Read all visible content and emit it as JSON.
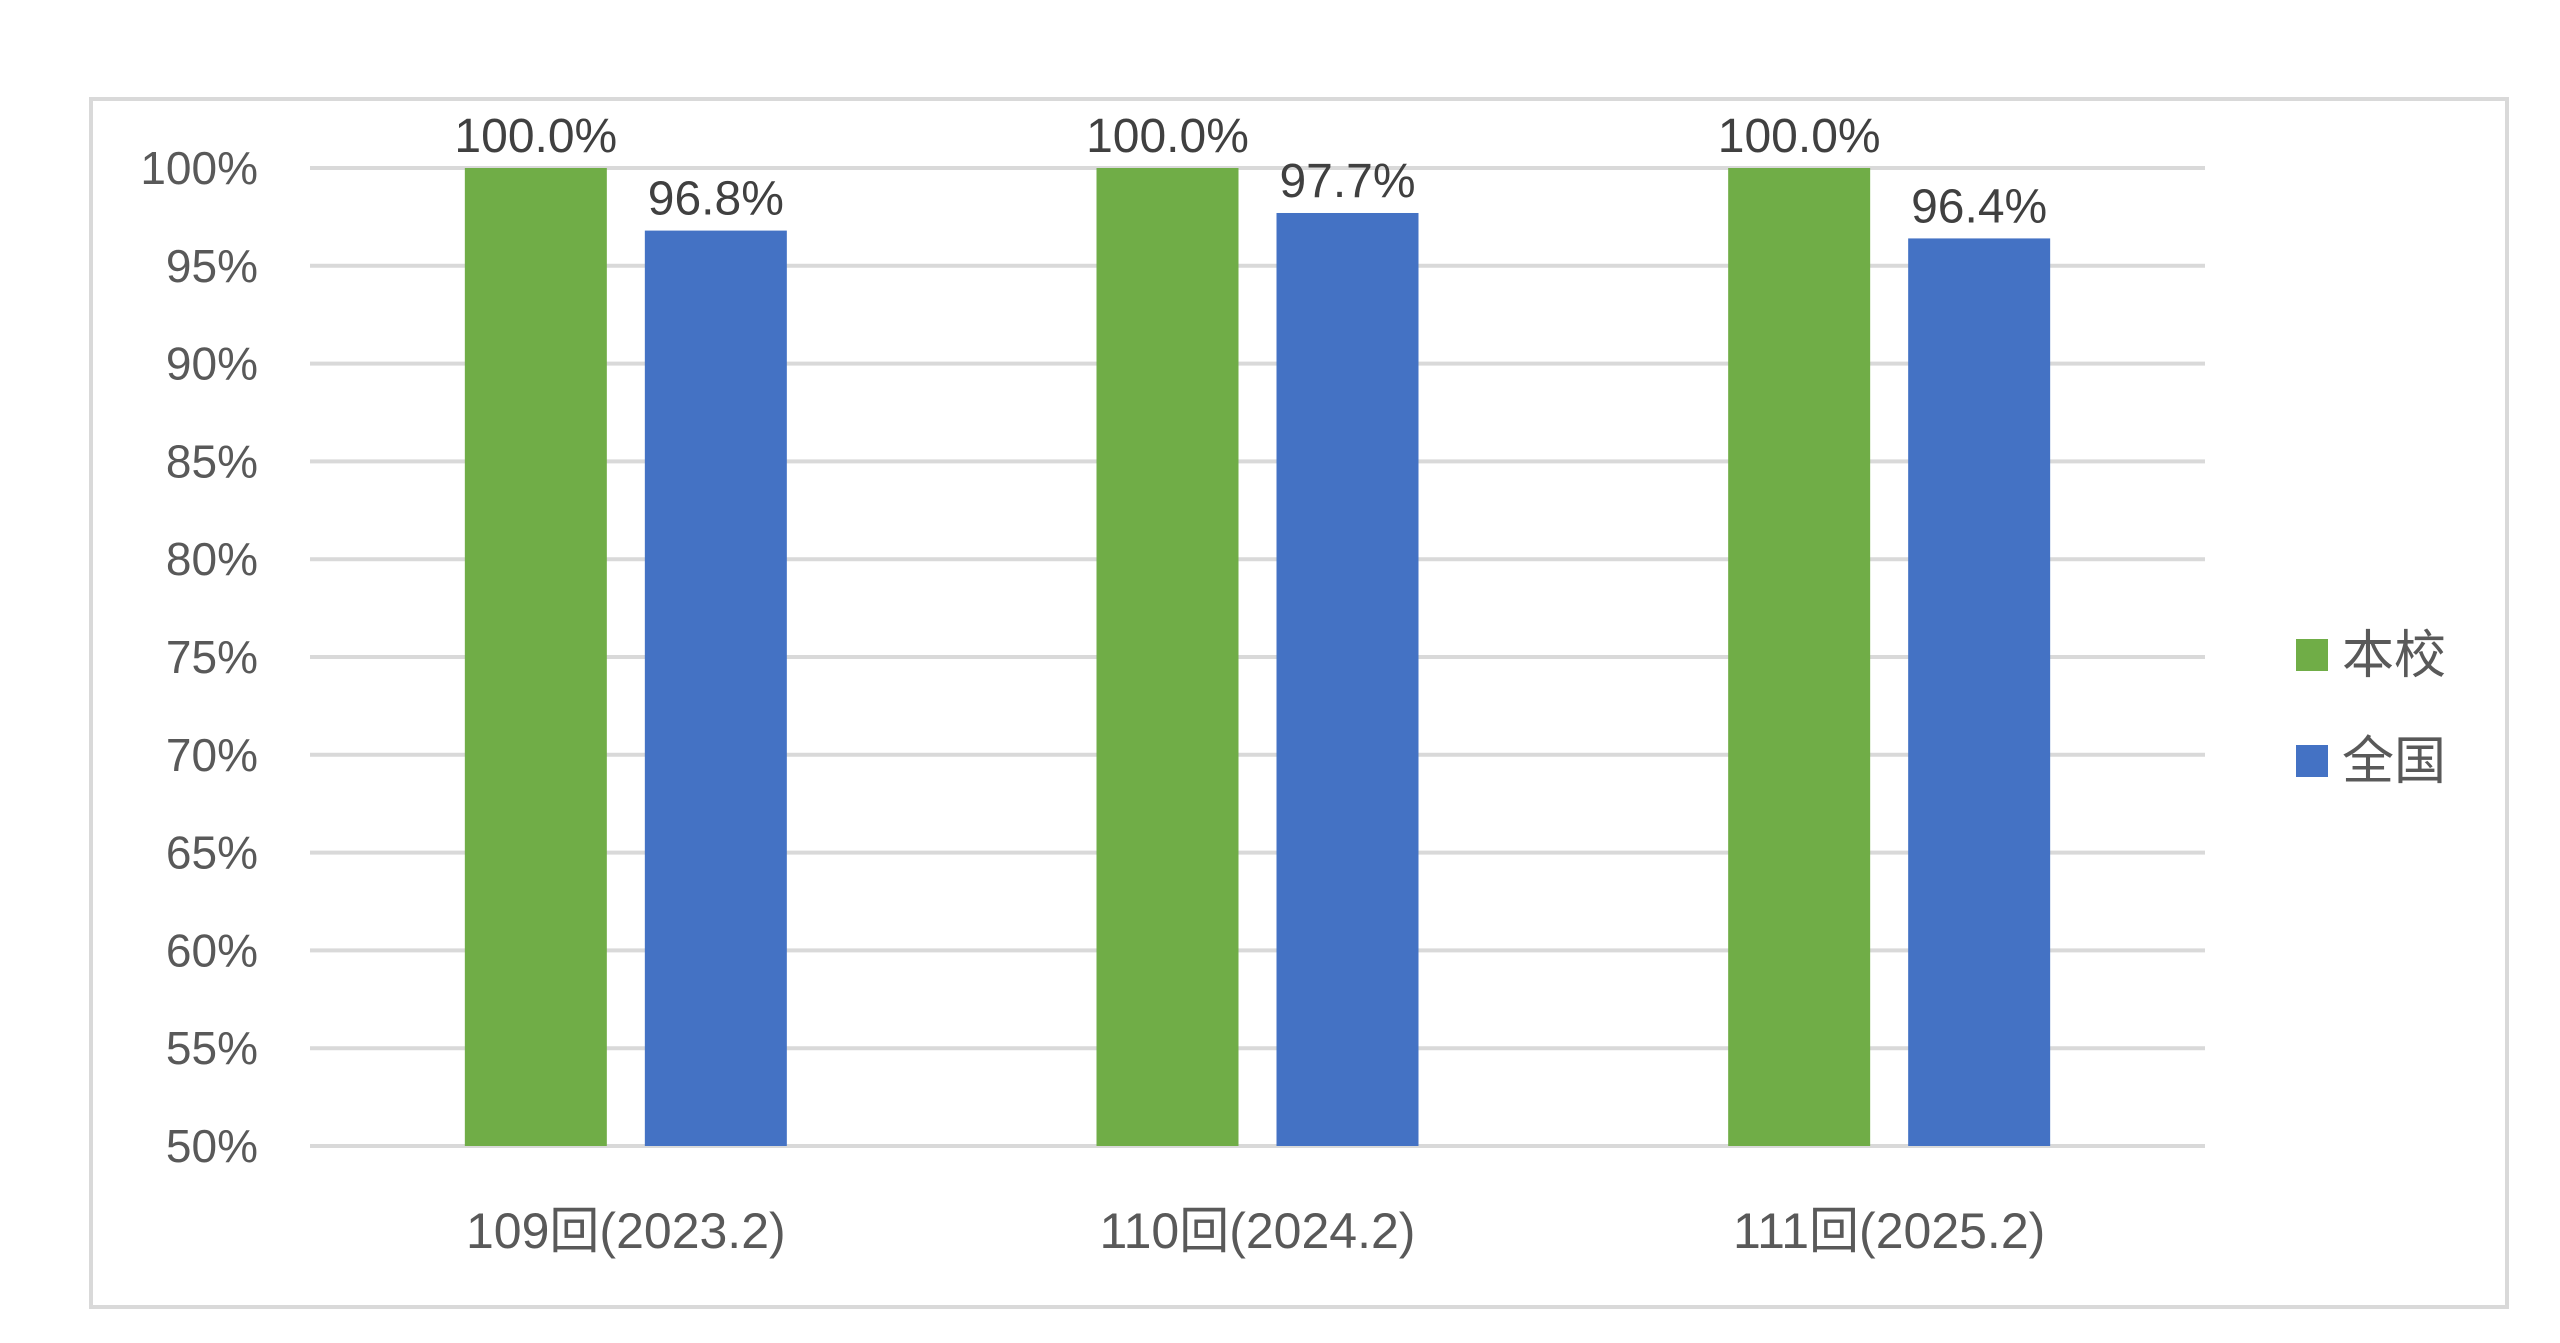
{
  "chart_data": {
    "type": "bar",
    "title": "",
    "xlabel": "",
    "ylabel": "",
    "categories": [
      "109回(2023.2)",
      "110回(2024.2)",
      "111回(2025.2)"
    ],
    "series": [
      {
        "name": "本校",
        "color": "#70ad47",
        "values": [
          100.0,
          100.0,
          100.0
        ],
        "labels": [
          "100.0%",
          "100.0%",
          "100.0%"
        ]
      },
      {
        "name": "全国",
        "color": "#4472c4",
        "values": [
          96.8,
          97.7,
          96.4
        ],
        "labels": [
          "96.8%",
          "97.7%",
          "96.4%"
        ]
      }
    ],
    "ylim": [
      50,
      100
    ],
    "yticks": [
      "100%",
      "95%",
      "90%",
      "85%",
      "80%",
      "75%",
      "70%",
      "65%",
      "60%",
      "55%",
      "50%"
    ],
    "grid": true,
    "legend_position": "right"
  }
}
